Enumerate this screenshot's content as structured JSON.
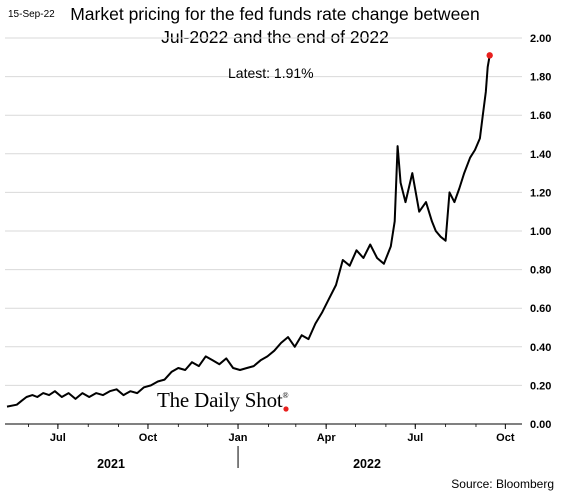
{
  "header": {
    "date": "15-Sep-22"
  },
  "watermark": {
    "text": "The Daily Shot",
    "mark": "®"
  },
  "footer": {
    "source": "Source: Bloomberg"
  },
  "colors": {
    "line": "#000000",
    "endpoint": "#e8201e",
    "grid": "#d9d9d9"
  },
  "chart_data": {
    "type": "line",
    "title_line1": "Market pricing for the fed funds rate change between",
    "title_line2": "Jul-2022 and the end of 2022",
    "annotation": "Latest:  1.91%",
    "xlabel": "",
    "ylabel": "",
    "ylim": [
      0,
      2.0
    ],
    "yticks": [
      "0.00",
      "0.20",
      "0.40",
      "0.60",
      "0.80",
      "1.00",
      "1.20",
      "1.40",
      "1.60",
      "1.80",
      "2.00"
    ],
    "xticks": [
      "Jul",
      "Oct",
      "Jan",
      "Apr",
      "Jul",
      "Oct"
    ],
    "year_labels": [
      "2021",
      "2022"
    ],
    "grid": true,
    "series": [
      {
        "points": [
          [
            "2021-05-10",
            0.09
          ],
          [
            "2021-05-20",
            0.1
          ],
          [
            "2021-05-25",
            0.12
          ],
          [
            "2021-05-30",
            0.14
          ],
          [
            "2021-06-05",
            0.15
          ],
          [
            "2021-06-10",
            0.14
          ],
          [
            "2021-06-16",
            0.16
          ],
          [
            "2021-06-22",
            0.15
          ],
          [
            "2021-06-28",
            0.17
          ],
          [
            "2021-07-05",
            0.14
          ],
          [
            "2021-07-12",
            0.16
          ],
          [
            "2021-07-19",
            0.13
          ],
          [
            "2021-07-26",
            0.16
          ],
          [
            "2021-08-02",
            0.14
          ],
          [
            "2021-08-09",
            0.16
          ],
          [
            "2021-08-16",
            0.15
          ],
          [
            "2021-08-23",
            0.17
          ],
          [
            "2021-08-30",
            0.18
          ],
          [
            "2021-09-06",
            0.15
          ],
          [
            "2021-09-13",
            0.17
          ],
          [
            "2021-09-20",
            0.16
          ],
          [
            "2021-09-27",
            0.19
          ],
          [
            "2021-10-04",
            0.2
          ],
          [
            "2021-10-11",
            0.22
          ],
          [
            "2021-10-18",
            0.23
          ],
          [
            "2021-10-25",
            0.27
          ],
          [
            "2021-11-01",
            0.29
          ],
          [
            "2021-11-08",
            0.28
          ],
          [
            "2021-11-15",
            0.32
          ],
          [
            "2021-11-22",
            0.3
          ],
          [
            "2021-11-29",
            0.35
          ],
          [
            "2021-12-06",
            0.33
          ],
          [
            "2021-12-13",
            0.31
          ],
          [
            "2021-12-20",
            0.34
          ],
          [
            "2021-12-27",
            0.29
          ],
          [
            "2022-01-03",
            0.28
          ],
          [
            "2022-01-10",
            0.29
          ],
          [
            "2022-01-17",
            0.3
          ],
          [
            "2022-01-24",
            0.33
          ],
          [
            "2022-01-31",
            0.35
          ],
          [
            "2022-02-07",
            0.38
          ],
          [
            "2022-02-14",
            0.42
          ],
          [
            "2022-02-21",
            0.45
          ],
          [
            "2022-02-28",
            0.4
          ],
          [
            "2022-03-07",
            0.46
          ],
          [
            "2022-03-14",
            0.44
          ],
          [
            "2022-03-21",
            0.52
          ],
          [
            "2022-03-28",
            0.58
          ],
          [
            "2022-04-04",
            0.65
          ],
          [
            "2022-04-11",
            0.72
          ],
          [
            "2022-04-18",
            0.85
          ],
          [
            "2022-04-25",
            0.82
          ],
          [
            "2022-05-02",
            0.9
          ],
          [
            "2022-05-09",
            0.86
          ],
          [
            "2022-05-16",
            0.93
          ],
          [
            "2022-05-23",
            0.86
          ],
          [
            "2022-05-30",
            0.83
          ],
          [
            "2022-06-06",
            0.92
          ],
          [
            "2022-06-10",
            1.05
          ],
          [
            "2022-06-13",
            1.44
          ],
          [
            "2022-06-16",
            1.25
          ],
          [
            "2022-06-21",
            1.15
          ],
          [
            "2022-06-28",
            1.3
          ],
          [
            "2022-07-05",
            1.1
          ],
          [
            "2022-07-12",
            1.15
          ],
          [
            "2022-07-18",
            1.05
          ],
          [
            "2022-07-22",
            1.0
          ],
          [
            "2022-07-27",
            0.97
          ],
          [
            "2022-08-01",
            0.95
          ],
          [
            "2022-08-05",
            1.2
          ],
          [
            "2022-08-10",
            1.15
          ],
          [
            "2022-08-15",
            1.22
          ],
          [
            "2022-08-20",
            1.3
          ],
          [
            "2022-08-26",
            1.38
          ],
          [
            "2022-08-31",
            1.42
          ],
          [
            "2022-09-05",
            1.48
          ],
          [
            "2022-09-08",
            1.6
          ],
          [
            "2022-09-11",
            1.72
          ],
          [
            "2022-09-13",
            1.85
          ],
          [
            "2022-09-15",
            1.91
          ]
        ]
      }
    ]
  }
}
